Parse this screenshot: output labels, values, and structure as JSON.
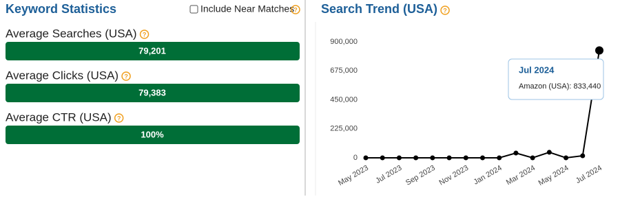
{
  "left_panel": {
    "title": "Keyword Statistics",
    "checkbox_label": "Include Near Matches",
    "stats": [
      {
        "label": "Average Searches (USA)",
        "value": "79,201"
      },
      {
        "label": "Average Clicks (USA)",
        "value": "79,383"
      },
      {
        "label": "Average CTR (USA)",
        "value": "100%"
      }
    ]
  },
  "chart_data": {
    "type": "line",
    "title": "Search Trend (USA)",
    "categories": [
      "May 2023",
      null,
      "Jul 2023",
      null,
      "Sep 2023",
      null,
      "Nov 2023",
      null,
      "Jan 2024",
      null,
      "Mar 2024",
      null,
      "May 2024",
      null,
      "Jul 2024"
    ],
    "series": [
      {
        "name": "Amazon (USA)",
        "color": "#000000",
        "values": [
          0,
          0,
          0,
          0,
          0,
          0,
          0,
          0,
          0,
          37000,
          0,
          43000,
          0,
          16000,
          833440
        ]
      }
    ],
    "ylim": [
      0,
      900000
    ],
    "yticks": [
      0,
      {
        "value": 225000,
        "label": "225,000"
      },
      {
        "value": 450000,
        "label": "450,000"
      },
      {
        "value": 675000,
        "label": "675,000"
      },
      {
        "value": 900000,
        "label": "900,000"
      }
    ],
    "grid": false,
    "tooltip": {
      "title": "Jul 2024",
      "text": "Amazon (USA): 833,440"
    }
  }
}
